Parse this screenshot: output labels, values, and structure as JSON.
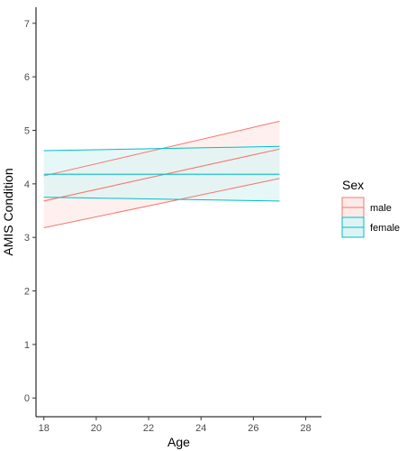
{
  "chart_data": {
    "type": "line",
    "xlabel": "Age",
    "ylabel": "AMIS Condition",
    "xlim": [
      17.7,
      28.6
    ],
    "ylim": [
      -0.35,
      7.3
    ],
    "x_ticks": [
      18,
      20,
      22,
      24,
      26,
      28
    ],
    "y_ticks": [
      0,
      1,
      2,
      3,
      4,
      5,
      6,
      7
    ],
    "grid": false,
    "legend_title": "Sex",
    "legend_position": "right",
    "series": [
      {
        "name": "male",
        "color": "#F8766D",
        "fill": "#FDEBE9",
        "x": [
          18,
          27
        ],
        "y": [
          3.68,
          4.65
        ],
        "lower": [
          3.18,
          4.1
        ],
        "upper": [
          4.15,
          5.17
        ]
      },
      {
        "name": "female",
        "color": "#00BFC4",
        "fill": "#DDF4F4",
        "x": [
          18,
          27
        ],
        "y": [
          4.18,
          4.18
        ],
        "lower": [
          3.75,
          3.68
        ],
        "upper": [
          4.62,
          4.7
        ]
      }
    ]
  }
}
